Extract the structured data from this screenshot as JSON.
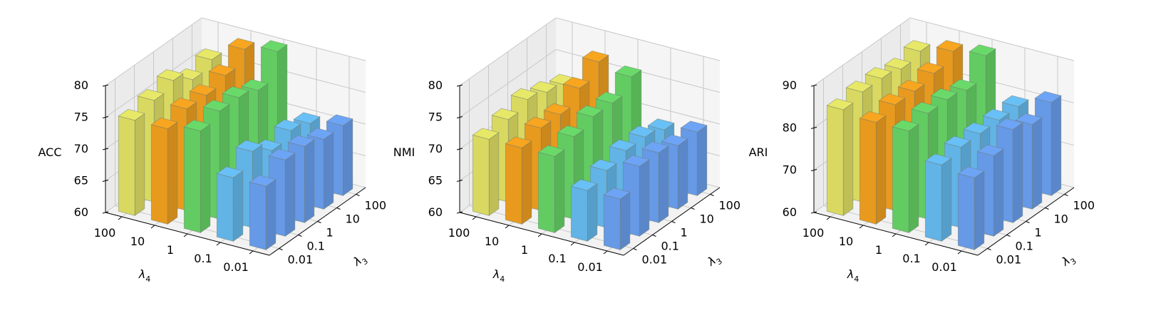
{
  "figure": {
    "colors": {
      "lambda4_100": "#d9d961",
      "lambda4_10": "#e89a1e",
      "lambda4_1": "#62cc62",
      "lambda4_0.1": "#62b3e6",
      "lambda4_0.01": "#6699e6",
      "edge": "#6f7c6f",
      "pane": "#f2f2f2",
      "grid": "#c8c8c8"
    }
  },
  "chart_data": [
    {
      "type": "bar3d",
      "zlabel": "ACC",
      "xlabel": "λ4",
      "ylabel": "λ3",
      "x_ticks": [
        "100",
        "10",
        "1",
        "0.1",
        "0.01"
      ],
      "y_ticks": [
        "0.01",
        "0.1",
        "1",
        "10",
        "100"
      ],
      "zlim": [
        60,
        80
      ],
      "z_ticks": [
        "60",
        "65",
        "70",
        "75",
        "80"
      ],
      "grid": true,
      "values": [
        [
          75,
          76,
          77,
          75,
          76
        ],
        [
          75,
          76,
          76,
          77,
          79
        ],
        [
          76,
          77,
          77,
          76,
          80
        ],
        [
          70,
          72,
          70,
          71,
          70
        ],
        [
          70,
          72,
          72,
          71,
          71
        ]
      ]
    },
    {
      "type": "bar3d",
      "zlabel": "NMI",
      "xlabel": "λ4",
      "ylabel": "λ3",
      "x_ticks": [
        "100",
        "10",
        "1",
        "0.1",
        "0.01"
      ],
      "y_ticks": [
        "0.01",
        "0.1",
        "1",
        "10",
        "100"
      ],
      "zlim": [
        60,
        80
      ],
      "z_ticks": [
        "60",
        "65",
        "70",
        "75",
        "80"
      ],
      "grid": true,
      "values": [
        [
          72,
          73,
          74,
          73,
          72
        ],
        [
          72,
          73,
          73,
          75,
          77
        ],
        [
          72,
          73,
          74,
          74,
          76
        ],
        [
          68,
          69,
          70,
          70,
          69
        ],
        [
          68,
          71,
          71,
          70,
          70
        ]
      ]
    },
    {
      "type": "bar3d",
      "zlabel": "ARI",
      "xlabel": "λ4",
      "ylabel": "λ3",
      "x_ticks": [
        "100",
        "10",
        "1",
        "0.1",
        "0.01"
      ],
      "y_ticks": [
        "0.01",
        "0.1",
        "1",
        "10",
        "100"
      ],
      "zlim": [
        60,
        90
      ],
      "z_ticks": [
        "60",
        "70",
        "80",
        "90"
      ],
      "grid": true,
      "values": [
        [
          85,
          86,
          86,
          85,
          86
        ],
        [
          84,
          85,
          85,
          86,
          88
        ],
        [
          84,
          85,
          85,
          84,
          89
        ],
        [
          78,
          79,
          79,
          79,
          79
        ],
        [
          77,
          79,
          82,
          80,
          82
        ]
      ]
    }
  ]
}
